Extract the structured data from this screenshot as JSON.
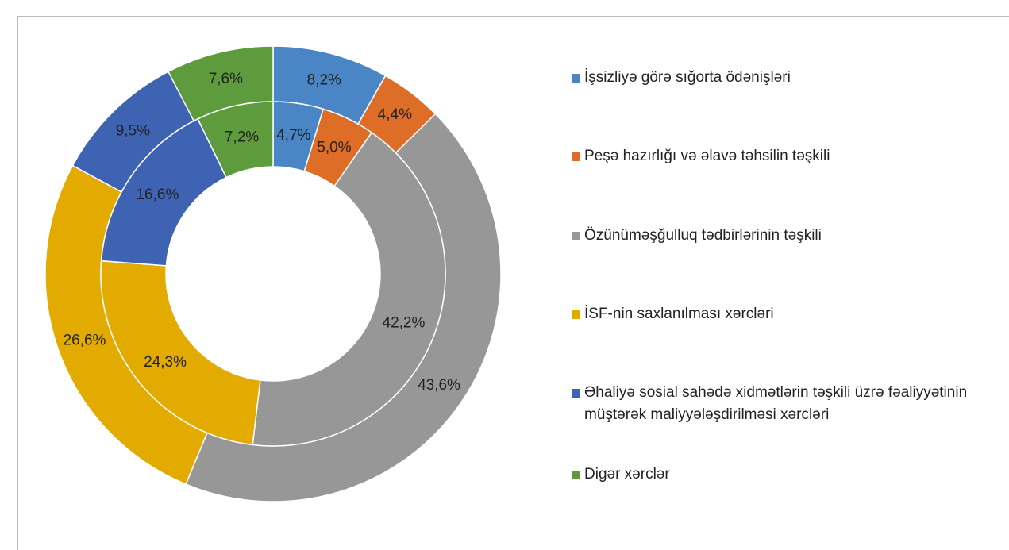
{
  "chart_data": {
    "type": "doughnut",
    "categories": [
      "İşsizliyə görə sığorta ödənişləri",
      "Peşə hazırlığı və əlavə təhsilin təşkili",
      "Özünüməşğulluq tədbirlərinin təşkili",
      "İSF-nin saxlanılması xərcləri",
      "Əhaliyə sosial sahədə xidmətlərin təşkili üzrə fəaliyyətinin müştərək maliyyələşdirilməsi xərcləri",
      "Digər xərclər"
    ],
    "colors": [
      "#4a86c5",
      "#de6d28",
      "#979797",
      "#e3aa00",
      "#3d63b2",
      "#5e9b3c"
    ],
    "series": [
      {
        "values": [
          8.2,
          4.4,
          43.6,
          26.6,
          9.5,
          7.6
        ],
        "value_labels": [
          "8,2%",
          "4,4%",
          "43,6%",
          "26,6%",
          "9,5%",
          "7,6%"
        ]
      },
      {
        "values": [
          4.7,
          5.0,
          42.2,
          24.3,
          16.6,
          7.2
        ],
        "value_labels": [
          "4,7%",
          "5,0%",
          "42,2%",
          "24,3%",
          "16,6%",
          "7,2%"
        ]
      }
    ],
    "legend": "right"
  }
}
